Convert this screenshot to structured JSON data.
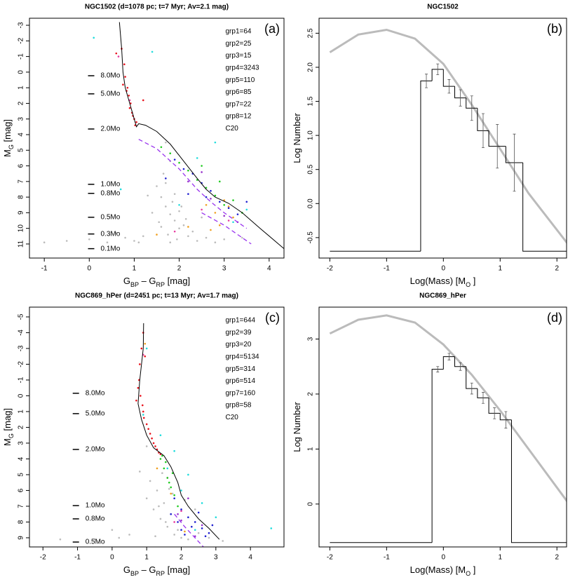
{
  "chart_data": [
    {
      "type": "scatter",
      "title": "NGC1502 (d=1078 pc; t=7 Myr; Av=2.1 mag)",
      "panel": "(a)",
      "xlabel": [
        "G",
        "BP",
        " – G",
        "RP",
        " [mag]"
      ],
      "ylabel": [
        "M",
        "G",
        " [mag]"
      ],
      "xlim": [
        -1.33,
        4.33
      ],
      "ylim": [
        11.9,
        -3.45
      ],
      "xticks": [
        -1,
        0,
        1,
        2,
        3,
        4
      ],
      "yticks": [
        -3,
        -2,
        -1,
        0,
        1,
        2,
        3,
        4,
        5,
        6,
        7,
        8,
        9,
        10,
        11
      ],
      "legend": "top-right",
      "mass_labels": [
        {
          "label": "8.0Mo",
          "value": 0.23
        },
        {
          "label": "5.0Mo",
          "value": 1.39
        },
        {
          "label": "2.0Mo",
          "value": 3.64
        },
        {
          "label": "1.0Mo",
          "value": 7.18
        },
        {
          "label": "0.8Mo",
          "value": 7.76
        },
        {
          "label": "0.5Mo",
          "value": 9.29
        },
        {
          "label": "0.3Mo",
          "value": 10.36
        },
        {
          "label": "0.1Mo",
          "value": 11.3
        }
      ],
      "series": [
        {
          "name": "grp1=64",
          "style": "points",
          "color": "#e8141e",
          "x": [
            0.72,
            0.78,
            0.8,
            0.85,
            0.88,
            0.92,
            0.95,
            1.0,
            1.02,
            0.6,
            0.75,
            0.9,
            1.05,
            0.83,
            0.97,
            1.2
          ],
          "values": [
            -1.5,
            -0.5,
            0.3,
            1.0,
            1.5,
            2.0,
            2.6,
            3.0,
            3.4,
            -1.2,
            0.8,
            2.3,
            3.2,
            1.2,
            2.8,
            1.8
          ]
        },
        {
          "name": "grp2=25",
          "style": "points",
          "color": "#e83ca0",
          "x": [
            0.65,
            0.9,
            1.9,
            2.5,
            3.1
          ],
          "values": [
            -1.0,
            1.8,
            10.2,
            8.8,
            9.5
          ]
        },
        {
          "name": "grp3=15",
          "style": "points",
          "color": "#f0a020",
          "x": [
            2.6,
            2.8,
            2.9,
            3.0,
            3.2,
            2.7,
            3.1,
            1.5,
            2.2
          ],
          "values": [
            8.5,
            9.0,
            9.8,
            8.2,
            9.3,
            10.1,
            8.6,
            10.4,
            9.9
          ]
        },
        {
          "name": "grp4=3243",
          "style": "points",
          "color": "#bbbbbb",
          "x": [
            1.6,
            1.7,
            1.8,
            1.9,
            2.0,
            1.5,
            1.75,
            1.85,
            1.95,
            2.1,
            2.2,
            1.4,
            1.65,
            1.9,
            2.3,
            1.8,
            2.0,
            1.6,
            1.7,
            2.4,
            -1.0,
            -0.5,
            0.0,
            0.4,
            0.8,
            1.0,
            1.2,
            2.6,
            2.8,
            3.0,
            1.3,
            1.55,
            2.05,
            1.8,
            2.15,
            1.7,
            3.4,
            2.5,
            1.1,
            0.6
          ],
          "values": [
            8.0,
            8.6,
            9.1,
            9.5,
            10.0,
            7.3,
            10.4,
            8.3,
            10.7,
            9.8,
            10.5,
            9.0,
            6.5,
            7.8,
            10.2,
            5.7,
            8.9,
            9.9,
            7.1,
            10.8,
            10.9,
            10.8,
            10.7,
            10.9,
            10.6,
            10.8,
            10.5,
            10.6,
            10.9,
            10.7,
            7.9,
            9.6,
            8.6,
            10.9,
            9.4,
            4.5,
            10.6,
            9.3,
            10.9,
            10.3
          ]
        },
        {
          "name": "grp5=110",
          "style": "points",
          "color": "#22cc22",
          "x": [
            1.8,
            2.0,
            2.2,
            2.4,
            2.6,
            2.8,
            3.0,
            3.2,
            2.5,
            2.9,
            1.6,
            3.4
          ],
          "values": [
            5.2,
            5.8,
            6.3,
            6.9,
            7.4,
            7.9,
            8.5,
            8.2,
            6.0,
            7.0,
            4.8,
            9.0
          ]
        },
        {
          "name": "grp6=85",
          "style": "points",
          "color": "#2020d0",
          "x": [
            1.9,
            2.1,
            2.3,
            2.5,
            2.7,
            2.9,
            3.1,
            3.3,
            2.2,
            2.6,
            3.5,
            1.7
          ],
          "values": [
            5.6,
            6.2,
            6.5,
            7.1,
            7.6,
            8.3,
            8.7,
            9.1,
            7.8,
            8.0,
            8.3,
            6.8
          ]
        },
        {
          "name": "grp7=22",
          "style": "points",
          "color": "#22dddd",
          "x": [
            0.1,
            1.4,
            2.0,
            2.8,
            3.2,
            0.7,
            2.4,
            3.5
          ],
          "values": [
            -2.2,
            -1.3,
            8.5,
            4.5,
            9.6,
            7.5,
            5.5,
            8.8
          ]
        },
        {
          "name": "grp8=12",
          "style": "points",
          "color": "#9933cc",
          "x": [
            2.2,
            2.7,
            3.0,
            3.3,
            2.5
          ],
          "values": [
            7.0,
            8.1,
            9.2,
            9.6,
            6.4
          ]
        },
        {
          "name": "C20",
          "style": "line",
          "color": "#000000",
          "label_color": "#b22222",
          "x": [
            0.67,
            0.72,
            0.75,
            0.8,
            0.9,
            1.0,
            1.05,
            1.1,
            1.25,
            1.5,
            1.8,
            2.1,
            2.4,
            2.6,
            2.8,
            3.1,
            3.4,
            3.8,
            4.33
          ],
          "values": [
            -3.2,
            -1.5,
            0,
            1,
            2,
            3,
            3.5,
            3.3,
            3.4,
            3.8,
            4.6,
            5.7,
            6.8,
            7.5,
            8.0,
            8.4,
            9.0,
            10.0,
            11.3
          ]
        },
        {
          "style": "dashed",
          "color": "#9933ee",
          "x": [
            1.1,
            1.5,
            2.0,
            2.4,
            2.7,
            3.0,
            3.5,
            null,
            2.5,
            3.0,
            3.6
          ],
          "values": [
            4.3,
            4.9,
            6.2,
            7.5,
            8.3,
            9.0,
            10.0,
            null,
            9.0,
            9.8,
            11.0
          ]
        }
      ]
    },
    {
      "type": "histogram",
      "title": "NGC1502",
      "panel": "(b)",
      "xlabel": [
        "Log(Mass) [M",
        "O",
        " ]"
      ],
      "ylabel": [
        "Log Number"
      ],
      "xlim": [
        -2.19,
        2.17
      ],
      "ylim": [
        -0.8,
        2.72
      ],
      "xticks": [
        -2,
        -1,
        0,
        1,
        2
      ],
      "yticks": [
        -0.5,
        {
          "value": 0,
          "label": "0.0"
        },
        0.5,
        {
          "value": 1,
          "label": "1.0"
        },
        1.5,
        {
          "value": 2,
          "label": "2.0"
        },
        2.5
      ],
      "bins": [
        -2,
        -0.4,
        -0.2,
        0,
        0.2,
        0.4,
        0.6,
        0.8,
        1.1,
        1.4,
        2.2
      ],
      "values": [
        -0.7,
        1.8,
        1.97,
        1.72,
        1.55,
        1.4,
        1.07,
        0.84,
        0.6,
        -0.7
      ],
      "errors": [
        null,
        0.1,
        0.08,
        0.1,
        0.12,
        0.18,
        0.25,
        0.32,
        0.42,
        null
      ],
      "color": "#000000",
      "curve": {
        "color": "#bbbbbb",
        "x": [
          -2,
          -1.5,
          -1,
          -0.5,
          0,
          0.5,
          1,
          1.5,
          2.2
        ],
        "values": [
          2.22,
          2.48,
          2.55,
          2.42,
          2.05,
          1.45,
          0.8,
          0.15,
          -0.6
        ]
      }
    },
    {
      "type": "scatter",
      "title": "NGC869_hPer (d=2451 pc; t=13 Myr; Av=1.7 mag)",
      "panel": "(c)",
      "xlabel": [
        "G",
        "BP",
        " – G",
        "RP",
        " [mag]"
      ],
      "ylabel": [
        "M",
        "G",
        " [mag]"
      ],
      "xlim": [
        -2.39,
        4.97
      ],
      "ylim": [
        9.58,
        -5.62
      ],
      "xticks": [
        -2,
        -1,
        0,
        1,
        2,
        3,
        4
      ],
      "yticks": [
        -5,
        -4,
        -3,
        -2,
        -1,
        0,
        1,
        2,
        3,
        4,
        5,
        6,
        7,
        8,
        9
      ],
      "legend": "top-right",
      "mass_labels": [
        {
          "label": "8.0Mo",
          "value": -0.16
        },
        {
          "label": "5.0Mo",
          "value": 1.13
        },
        {
          "label": "2.0Mo",
          "value": 3.4
        },
        {
          "label": "1.0Mo",
          "value": 6.96
        },
        {
          "label": "0.8Mo",
          "value": 7.8
        },
        {
          "label": "0.5Mo",
          "value": 9.27
        }
      ],
      "series": [
        {
          "name": "grp1=644",
          "style": "points",
          "color": "#e8141e",
          "x": [
            0.9,
            0.85,
            0.8,
            0.78,
            0.82,
            0.9,
            1.0,
            1.1,
            1.2,
            1.3,
            1.4,
            0.95,
            0.75,
            0.88,
            1.05,
            1.15,
            1.25,
            0.7,
            1.35,
            0.92
          ],
          "values": [
            -4.0,
            -3.0,
            -2.0,
            -1.0,
            0.0,
            1.0,
            1.8,
            2.4,
            3.0,
            3.4,
            3.7,
            -2.5,
            -0.5,
            0.6,
            2.1,
            2.7,
            3.2,
            0.3,
            3.6,
            1.4
          ]
        },
        {
          "name": "grp2=39",
          "style": "points",
          "color": "#e83ca0",
          "x": [
            0.9,
            1.6,
            2.0,
            1.8
          ],
          "values": [
            -2.6,
            5.2,
            7.3,
            8.0
          ]
        },
        {
          "name": "grp3=20",
          "style": "points",
          "color": "#f0a020",
          "x": [
            0.95,
            1.3,
            1.7,
            2.1
          ],
          "values": [
            -3.3,
            4.6,
            6.2,
            8.6
          ]
        },
        {
          "name": "grp4=5134",
          "style": "points",
          "color": "#bbbbbb",
          "x": [
            1.0,
            1.2,
            1.4,
            1.6,
            1.8,
            2.0,
            1.1,
            1.3,
            1.5,
            1.7,
            1.9,
            2.2,
            0.5,
            0.2,
            -0.5,
            -1.5,
            2.5,
            2.8,
            3.2,
            1.0,
            0.8,
            1.45,
            1.65,
            1.25,
            2.4,
            1.55,
            1.35,
            1.75,
            0.0,
            2.1
          ],
          "values": [
            6.5,
            7.2,
            7.8,
            8.3,
            8.8,
            9.0,
            5.4,
            6.0,
            6.8,
            7.5,
            8.5,
            9.1,
            8.8,
            9.0,
            9.1,
            9.1,
            8.7,
            9.0,
            9.2,
            3.2,
            4.8,
            4.9,
            5.9,
            8.9,
            7.2,
            8.0,
            7.0,
            6.2,
            8.5,
            6.6
          ]
        },
        {
          "name": "grp5=314",
          "style": "points",
          "color": "#22cc22",
          "x": [
            1.4,
            1.5,
            1.6,
            1.7,
            1.8,
            1.55,
            1.65,
            1.45,
            1.9,
            1.75
          ],
          "values": [
            4.0,
            4.6,
            5.2,
            5.8,
            6.3,
            4.2,
            5.5,
            3.8,
            7.0,
            4.9
          ]
        },
        {
          "name": "grp6=514",
          "style": "points",
          "color": "#2020d0",
          "x": [
            1.8,
            2.0,
            2.2,
            2.4,
            2.6,
            2.8,
            2.1,
            2.3,
            1.9,
            2.5,
            2.7,
            1.7,
            2.0,
            2.9
          ],
          "values": [
            6.5,
            7.2,
            7.7,
            8.0,
            8.4,
            8.7,
            8.8,
            8.3,
            8.0,
            7.4,
            8.9,
            7.5,
            8.5,
            8.2
          ]
        },
        {
          "name": "grp7=160",
          "style": "points",
          "color": "#22dddd",
          "x": [
            1.0,
            1.4,
            1.8,
            2.2,
            2.6,
            3.0,
            1.6,
            2.4,
            4.6,
            0.9,
            2.0
          ],
          "values": [
            -3.0,
            2.5,
            3.5,
            5.0,
            6.8,
            7.7,
            4.6,
            8.5,
            8.4,
            1.2,
            6.0
          ]
        },
        {
          "name": "grp8=58",
          "style": "points",
          "color": "#9933cc",
          "x": [
            2.0,
            2.4,
            2.2,
            1.9,
            2.6
          ],
          "values": [
            7.9,
            8.9,
            6.5,
            7.5,
            8.2
          ]
        },
        {
          "name": "C20",
          "style": "line",
          "color": "#000000",
          "label_color": "#b22222",
          "x": [
            0.91,
            0.9,
            0.8,
            0.75,
            0.85,
            1.0,
            1.2,
            1.5,
            1.7,
            1.9,
            2.0,
            2.2,
            2.5,
            2.8,
            3.1
          ],
          "values": [
            -4.6,
            -3,
            -1,
            0.5,
            1.5,
            2.5,
            3.3,
            3.8,
            4.5,
            5.5,
            6.3,
            7.0,
            7.8,
            8.4,
            9.1
          ]
        },
        {
          "style": "dashed",
          "color": "#9933ee",
          "x": [
            1.8,
            2.1,
            2.4,
            2.65
          ],
          "values": [
            7.5,
            8.3,
            9.0,
            9.6
          ]
        }
      ]
    },
    {
      "type": "histogram",
      "title": "NGC869_hPer",
      "panel": "(d)",
      "xlabel": [
        "Log(Mass) [M",
        "O",
        " ]"
      ],
      "ylabel": [
        "Log Number"
      ],
      "xlim": [
        -2.19,
        2.17
      ],
      "ylim": [
        -0.78,
        3.58
      ],
      "xticks": [
        -2,
        -1,
        0,
        1,
        2
      ],
      "yticks": [
        0,
        1,
        2,
        3
      ],
      "bins": [
        -2,
        -0.2,
        0,
        0.2,
        0.4,
        0.6,
        0.8,
        1.0,
        1.2,
        2.2
      ],
      "values": [
        -0.7,
        2.45,
        2.68,
        2.5,
        2.1,
        1.93,
        1.65,
        1.53,
        -0.7
      ],
      "errors": [
        null,
        0.05,
        0.06,
        0.07,
        0.1,
        0.1,
        0.1,
        0.15,
        null
      ],
      "color": "#000000",
      "curve": {
        "color": "#bbbbbb",
        "x": [
          -2,
          -1.5,
          -1,
          -0.5,
          0,
          0.5,
          1,
          1.5,
          2.2
        ],
        "values": [
          3.1,
          3.35,
          3.43,
          3.3,
          2.9,
          2.35,
          1.7,
          1.0,
          0.02
        ]
      }
    }
  ]
}
